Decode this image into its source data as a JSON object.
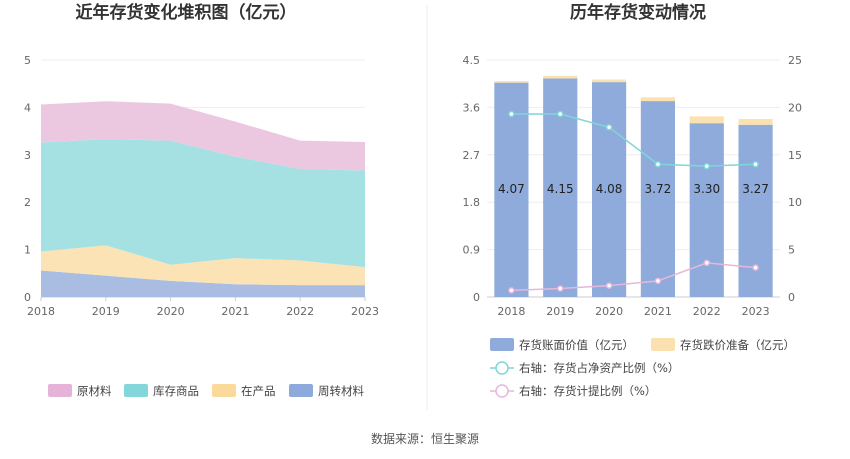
{
  "source_text": "数据来源：恒生聚源",
  "chart_data": [
    {
      "type": "area",
      "stacked": true,
      "title": "近年存货变化堆积图（亿元）",
      "x": [
        "2018",
        "2019",
        "2020",
        "2021",
        "2022",
        "2023"
      ],
      "ylim": [
        0,
        5
      ],
      "yticks": [
        "0",
        "1",
        "2",
        "3",
        "4",
        "5"
      ],
      "grid": true,
      "legend_position": "bottom",
      "series": [
        {
          "name": "周转材料",
          "color": "#a9bde3",
          "values": [
            0.56,
            0.45,
            0.34,
            0.27,
            0.25,
            0.25
          ]
        },
        {
          "name": "在产品",
          "color": "#fbe3b5",
          "values": [
            0.4,
            0.64,
            0.34,
            0.55,
            0.52,
            0.38
          ]
        },
        {
          "name": "库存商品",
          "color": "#a5e1e3",
          "values": [
            2.3,
            2.24,
            2.62,
            2.14,
            1.93,
            2.04
          ]
        },
        {
          "name": "原材料",
          "color": "#ecc8e0",
          "values": [
            0.8,
            0.8,
            0.78,
            0.74,
            0.6,
            0.6
          ]
        }
      ],
      "legend": [
        {
          "name": "原材料",
          "color": "#e6b3d8"
        },
        {
          "name": "库存商品",
          "color": "#83d7da"
        },
        {
          "name": "在产品",
          "color": "#fbd99b"
        },
        {
          "name": "周转材料",
          "color": "#8ea9dc"
        }
      ]
    },
    {
      "type": "bar",
      "stacked": true,
      "title": "历年存货变动情况",
      "x": [
        "2018",
        "2019",
        "2020",
        "2021",
        "2022",
        "2023"
      ],
      "ylim": [
        0,
        4.5
      ],
      "yticks": [
        "0",
        "0.9",
        "1.8",
        "2.7",
        "3.6",
        "4.5"
      ],
      "y2lim": [
        0,
        25
      ],
      "y2ticks": [
        "0",
        "5",
        "10",
        "15",
        "20",
        "25"
      ],
      "grid": true,
      "legend_position": "bottom",
      "bars": [
        {
          "name": "存货账面价值（亿元）",
          "color": "#8eabdb",
          "values": [
            4.07,
            4.15,
            4.08,
            3.72,
            3.3,
            3.27
          ],
          "labels": [
            "4.07",
            "4.15",
            "4.08",
            "3.72",
            "3.30",
            "3.27"
          ]
        },
        {
          "name": "存货跌价准备（亿元）",
          "color": "#fbe0b0",
          "values": [
            0.03,
            0.05,
            0.05,
            0.07,
            0.13,
            0.11
          ]
        }
      ],
      "lines": [
        {
          "name": "右轴：存货占净资产比例（%）",
          "color": "#7fd6d9",
          "values": [
            19.3,
            19.3,
            17.9,
            14.0,
            13.8,
            14.0
          ]
        },
        {
          "name": "右轴：存货计提比例（%）",
          "color": "#e6b7dc",
          "values": [
            0.7,
            0.9,
            1.2,
            1.7,
            3.6,
            3.1
          ]
        }
      ]
    }
  ]
}
